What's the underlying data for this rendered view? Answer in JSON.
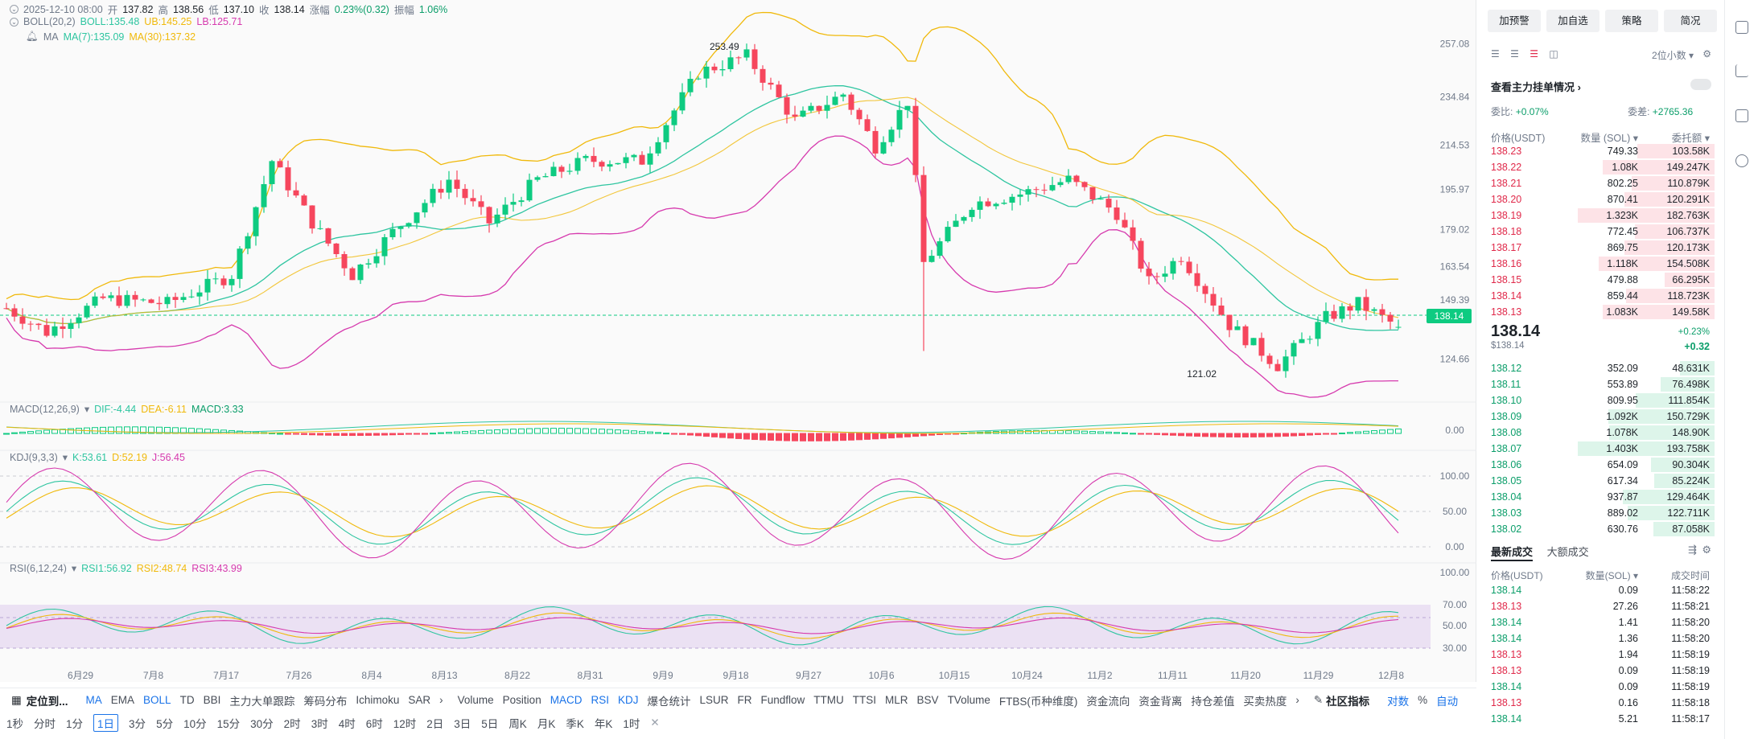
{
  "ohlc": {
    "date": "2025-12-10 08:00",
    "open_label": "开",
    "open": "137.82",
    "high_label": "高",
    "high": "138.56",
    "low_label": "低",
    "low": "137.10",
    "close_label": "收",
    "close": "138.14",
    "chg_label": "涨幅",
    "chg": "0.23%(0.32)",
    "amp_label": "振幅",
    "amp": "1.06%"
  },
  "indicators": {
    "boll": {
      "name": "BOLL(20,2)",
      "boll": "BOLL:135.48",
      "ub": "UB:145.25",
      "lb": "LB:125.71"
    },
    "ma": {
      "name": "MA",
      "ma7": "MA(7):135.09",
      "ma30": "MA(30):137.32"
    },
    "macd": {
      "name": "MACD(12,26,9)",
      "dif": "DIF:-4.44",
      "dea": "DEA:-6.11",
      "macd": "MACD:3.33"
    },
    "kdj": {
      "name": "KDJ(9,3,3)",
      "k": "K:53.61",
      "d": "D:52.19",
      "j": "J:56.45"
    },
    "rsi": {
      "name": "RSI(6,12,24)",
      "r1": "RSI1:56.92",
      "r2": "RSI2:48.74",
      "r3": "RSI3:43.99"
    }
  },
  "price_axis": [
    "257.08",
    "234.84",
    "214.53",
    "195.97",
    "179.02",
    "163.54",
    "149.39",
    "124.66"
  ],
  "macd_axis": [
    "0.00"
  ],
  "kdj_axis": [
    "100.00",
    "50.00",
    "0.00"
  ],
  "rsi_axis": [
    "100.00",
    "70.00",
    "50.00",
    "30.00"
  ],
  "last_price_tag": "138.14",
  "annotations": {
    "high": "253.49",
    "low": "121.02"
  },
  "date_axis": [
    "6月29",
    "7月8",
    "7月17",
    "7月26",
    "8月4",
    "8月13",
    "8月22",
    "8月31",
    "9月9",
    "9月18",
    "9月27",
    "10月6",
    "10月15",
    "10月24",
    "11月2",
    "11月11",
    "11月20",
    "11月29",
    "12月8"
  ],
  "toolbar_indicators": {
    "locate": "定位到...",
    "items": [
      "MA",
      "EMA",
      "BOLL",
      "TD",
      "BBI",
      "主力大单跟踪",
      "筹码分布",
      "Ichimoku",
      "SAR"
    ],
    "items2": [
      "Volume",
      "Position",
      "MACD",
      "RSI",
      "KDJ",
      "爆仓统计",
      "LSUR",
      "FR",
      "Fundflow",
      "TTMU",
      "TTSI",
      "MLR",
      "BSV",
      "TVolume",
      "FTBS(币种维度)",
      "资金流向",
      "资金背离",
      "持仓差值",
      "买卖热度"
    ],
    "community": "社区指标",
    "log": "对数",
    "pct": "%",
    "auto": "自动"
  },
  "timeframes": [
    "1秒",
    "分时",
    "1分",
    "1日",
    "3分",
    "5分",
    "10分",
    "15分",
    "30分",
    "2时",
    "3时",
    "4时",
    "6时",
    "12时",
    "2日",
    "3日",
    "5日",
    "周K",
    "月K",
    "季K",
    "年K",
    "1时"
  ],
  "selected_timeframe": "1日",
  "order_panel": {
    "buttons": [
      "加预警",
      "加自选",
      "策略",
      "简况"
    ],
    "decimals": "2位小数",
    "main_orders": "查看主力挂单情况",
    "wei_bi_label": "委比:",
    "wei_bi": "+0.07%",
    "wei_cha_label": "委差:",
    "wei_cha": "+2765.36",
    "headers": [
      "价格(USDT)",
      "数量 (SOL)",
      "委托额"
    ],
    "asks": [
      [
        "138.23",
        "749.33",
        "103.58K"
      ],
      [
        "138.22",
        "1.08K",
        "149.247K"
      ],
      [
        "138.21",
        "802.25",
        "110.879K"
      ],
      [
        "138.20",
        "870.41",
        "120.291K"
      ],
      [
        "138.19",
        "1.323K",
        "182.763K"
      ],
      [
        "138.18",
        "772.45",
        "106.737K"
      ],
      [
        "138.17",
        "869.75",
        "120.173K"
      ],
      [
        "138.16",
        "1.118K",
        "154.508K"
      ],
      [
        "138.15",
        "479.88",
        "66.295K"
      ],
      [
        "138.14",
        "859.44",
        "118.723K"
      ],
      [
        "138.13",
        "1.083K",
        "149.58K"
      ]
    ],
    "mid_price": "138.14",
    "mid_usd": "$138.14",
    "mid_pct": "+0.23%",
    "mid_chg": "+0.32",
    "bids": [
      [
        "138.12",
        "352.09",
        "48.631K"
      ],
      [
        "138.11",
        "553.89",
        "76.498K"
      ],
      [
        "138.10",
        "809.95",
        "111.854K"
      ],
      [
        "138.09",
        "1.092K",
        "150.729K"
      ],
      [
        "138.08",
        "1.078K",
        "148.90K"
      ],
      [
        "138.07",
        "1.403K",
        "193.758K"
      ],
      [
        "138.06",
        "654.09",
        "90.304K"
      ],
      [
        "138.05",
        "617.34",
        "85.224K"
      ],
      [
        "138.04",
        "937.87",
        "129.464K"
      ],
      [
        "138.03",
        "889.02",
        "122.711K"
      ],
      [
        "138.02",
        "630.76",
        "87.058K"
      ]
    ],
    "trades_tabs": [
      "最新成交",
      "大额成交"
    ],
    "trades_headers": [
      "价格(USDT)",
      "数量(SOL)",
      "成交时间"
    ],
    "trades": [
      [
        "138.14",
        "0.09",
        "11:58:22",
        "g"
      ],
      [
        "138.13",
        "27.26",
        "11:58:21",
        "r"
      ],
      [
        "138.14",
        "1.41",
        "11:58:20",
        "g"
      ],
      [
        "138.14",
        "1.36",
        "11:58:20",
        "g"
      ],
      [
        "138.13",
        "1.94",
        "11:58:19",
        "r"
      ],
      [
        "138.13",
        "0.09",
        "11:58:19",
        "r"
      ],
      [
        "138.14",
        "0.09",
        "11:58:19",
        "g"
      ],
      [
        "138.13",
        "0.16",
        "11:58:18",
        "r"
      ],
      [
        "138.14",
        "5.21",
        "11:58:17",
        "g"
      ]
    ]
  },
  "colors": {
    "up": "#0ecb81",
    "down": "#f6465d",
    "boll_mid": "#2ec5a0",
    "boll_up": "#f0b90b",
    "boll_lb": "#d63aae"
  }
}
